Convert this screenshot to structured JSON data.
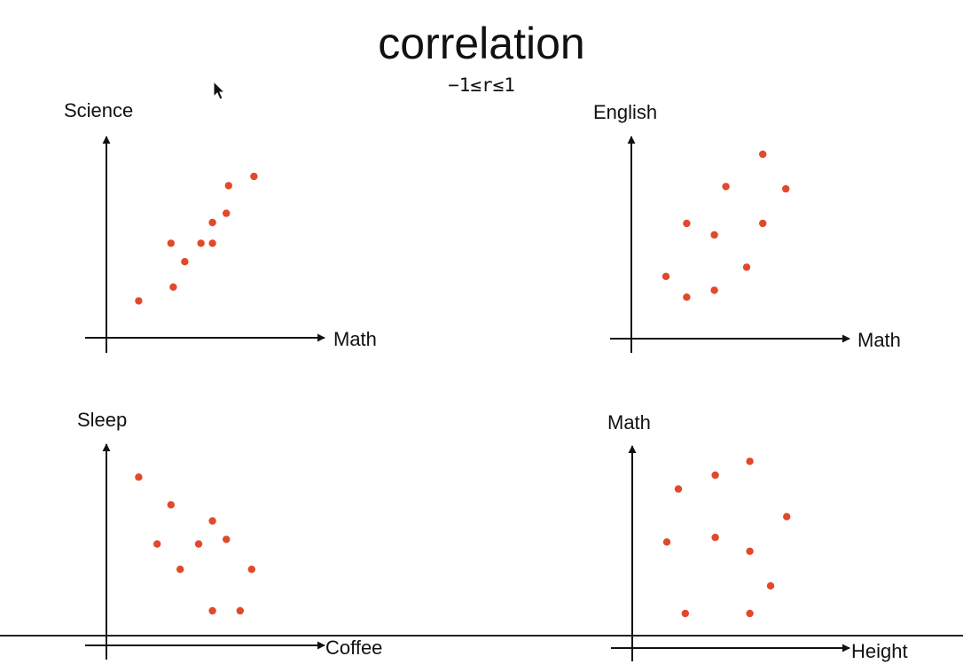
{
  "title": "correlation",
  "formula": "−1≤r≤1",
  "colors": {
    "point": "#e2492a",
    "axis": "#111111"
  },
  "chart_data": [
    {
      "type": "scatter",
      "ylabel": "Science",
      "xlabel": "Math",
      "points": [
        [
          1.4,
          1.6
        ],
        [
          2.9,
          2.2
        ],
        [
          2.8,
          4.1
        ],
        [
          3.4,
          3.3
        ],
        [
          4.1,
          4.1
        ],
        [
          4.6,
          4.1
        ],
        [
          4.6,
          5.0
        ],
        [
          5.2,
          5.4
        ],
        [
          5.3,
          6.6
        ],
        [
          6.4,
          7.0
        ]
      ]
    },
    {
      "type": "scatter",
      "ylabel": "English",
      "xlabel": "Math",
      "points": [
        [
          1.5,
          2.7
        ],
        [
          2.4,
          1.8
        ],
        [
          2.4,
          5.0
        ],
        [
          3.6,
          4.5
        ],
        [
          3.6,
          2.1
        ],
        [
          4.1,
          6.6
        ],
        [
          5.0,
          3.1
        ],
        [
          5.7,
          5.0
        ],
        [
          5.7,
          8.0
        ],
        [
          6.7,
          6.5
        ]
      ]
    },
    {
      "type": "scatter",
      "ylabel": "Sleep",
      "xlabel": "Coffee",
      "points": [
        [
          1.4,
          7.3
        ],
        [
          2.8,
          6.1
        ],
        [
          2.2,
          4.4
        ],
        [
          3.2,
          3.3
        ],
        [
          4.0,
          4.4
        ],
        [
          4.6,
          5.4
        ],
        [
          5.2,
          4.6
        ],
        [
          4.6,
          1.5
        ],
        [
          5.8,
          1.5
        ],
        [
          6.3,
          3.3
        ]
      ]
    },
    {
      "type": "scatter",
      "ylabel": "Math",
      "xlabel": "Height",
      "points": [
        [
          1.5,
          4.6
        ],
        [
          2.0,
          6.9
        ],
        [
          2.3,
          1.5
        ],
        [
          3.6,
          7.5
        ],
        [
          3.6,
          4.8
        ],
        [
          5.1,
          8.1
        ],
        [
          5.1,
          4.2
        ],
        [
          5.1,
          1.5
        ],
        [
          6.0,
          2.7
        ],
        [
          6.7,
          5.7
        ]
      ]
    }
  ]
}
